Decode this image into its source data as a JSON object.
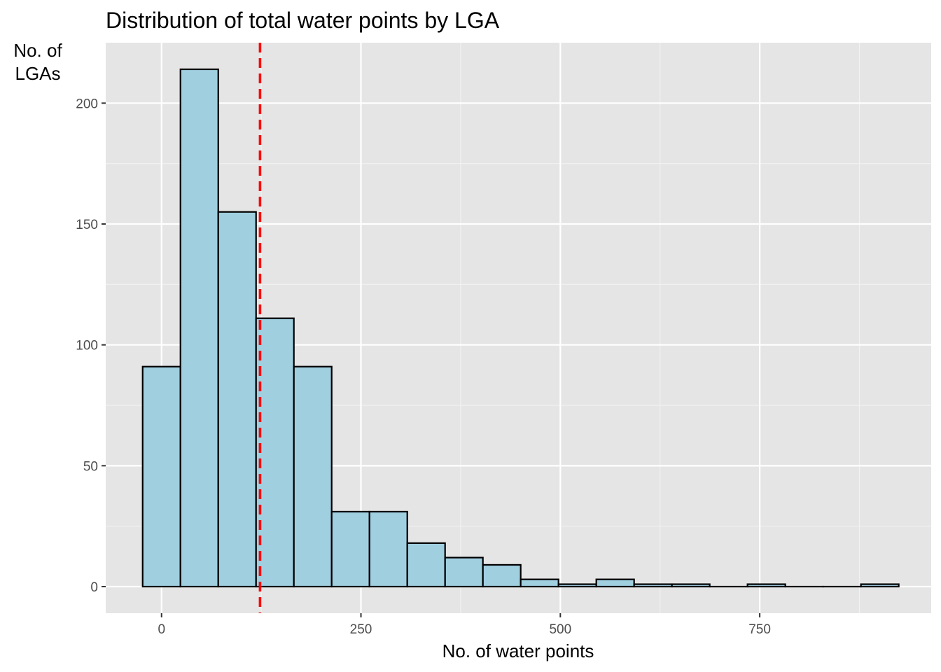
{
  "chart_data": {
    "type": "bar",
    "title": "Distribution of total water points by LGA",
    "xlabel": "No. of water points",
    "ylabel_lines": [
      "No. of",
      "LGAs"
    ],
    "xlim": [
      -70,
      965
    ],
    "ylim": [
      -11,
      225
    ],
    "x_ticks": [
      0,
      250,
      500,
      750
    ],
    "x_tick_labels": [
      "0",
      "250",
      "500",
      "750"
    ],
    "y_ticks": [
      0,
      50,
      100,
      150,
      200
    ],
    "y_tick_labels": [
      "0",
      "50",
      "100",
      "150",
      "200"
    ],
    "bins": [
      {
        "x0": -23.7,
        "x1": 23.7,
        "count": 91
      },
      {
        "x0": 23.7,
        "x1": 71.1,
        "count": 214
      },
      {
        "x0": 71.1,
        "x1": 118.5,
        "count": 155
      },
      {
        "x0": 118.5,
        "x1": 165.9,
        "count": 111
      },
      {
        "x0": 165.9,
        "x1": 213.3,
        "count": 91
      },
      {
        "x0": 213.3,
        "x1": 260.7,
        "count": 31
      },
      {
        "x0": 260.7,
        "x1": 308.1,
        "count": 31
      },
      {
        "x0": 308.1,
        "x1": 355.5,
        "count": 18
      },
      {
        "x0": 355.5,
        "x1": 402.9,
        "count": 12
      },
      {
        "x0": 402.9,
        "x1": 450.3,
        "count": 9
      },
      {
        "x0": 450.3,
        "x1": 497.7,
        "count": 3
      },
      {
        "x0": 497.7,
        "x1": 545.1,
        "count": 1
      },
      {
        "x0": 545.1,
        "x1": 592.5,
        "count": 3
      },
      {
        "x0": 592.5,
        "x1": 639.9,
        "count": 1
      },
      {
        "x0": 639.9,
        "x1": 687.3,
        "count": 1
      },
      {
        "x0": 687.3,
        "x1": 734.7,
        "count": 0
      },
      {
        "x0": 734.7,
        "x1": 782.1,
        "count": 1
      },
      {
        "x0": 782.1,
        "x1": 829.5,
        "count": 0
      },
      {
        "x0": 829.5,
        "x1": 876.9,
        "count": 0
      },
      {
        "x0": 876.9,
        "x1": 924.3,
        "count": 1
      }
    ],
    "mean_line_x": 123.5,
    "grid": true,
    "colors": {
      "panel_background": "#e5e5e5",
      "grid_major": "#ffffff",
      "grid_minor": "#f2f2f2",
      "bar_fill": "#a0cfe0",
      "bar_outline": "#000000",
      "mean_line": "#ff0000",
      "tick_mark": "#333333",
      "tick_label": "#4d4d4d"
    }
  }
}
